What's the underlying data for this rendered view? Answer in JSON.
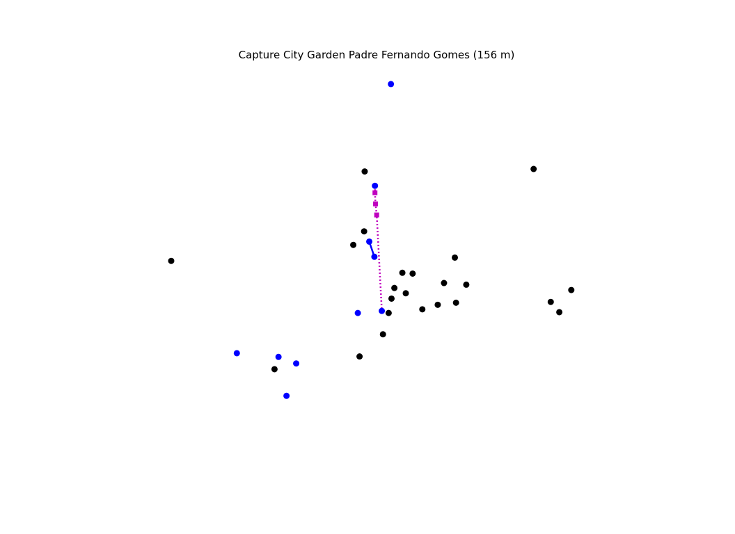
{
  "chart_data": {
    "type": "scatter",
    "title": "Capture City Garden Padre Fernando Gomes (156 m)",
    "xlabel": "",
    "ylabel": "",
    "axes_visible": false,
    "grid": false,
    "xlim": [
      0,
      100
    ],
    "ylim": [
      0,
      100
    ],
    "colors": {
      "black_points": "#000000",
      "blue_points": "#0000ff",
      "route": "#0000ff",
      "dotted_path": "#bf00bf"
    },
    "series": [
      {
        "marker": "circle",
        "color": "#000000",
        "points": [
          {
            "x": 47.8,
            "y": 73.8
          },
          {
            "x": 77.4,
            "y": 74.4
          },
          {
            "x": 47.7,
            "y": 59.2
          },
          {
            "x": 45.8,
            "y": 55.9
          },
          {
            "x": 13.9,
            "y": 52.0
          },
          {
            "x": 63.6,
            "y": 52.8
          },
          {
            "x": 54.4,
            "y": 49.1
          },
          {
            "x": 56.2,
            "y": 48.9
          },
          {
            "x": 61.7,
            "y": 46.6
          },
          {
            "x": 65.6,
            "y": 46.2
          },
          {
            "x": 53.0,
            "y": 45.4
          },
          {
            "x": 55.0,
            "y": 44.1
          },
          {
            "x": 52.5,
            "y": 42.8
          },
          {
            "x": 84.0,
            "y": 44.9
          },
          {
            "x": 80.4,
            "y": 42.0
          },
          {
            "x": 60.6,
            "y": 41.3
          },
          {
            "x": 63.8,
            "y": 41.8
          },
          {
            "x": 57.9,
            "y": 40.2
          },
          {
            "x": 52.0,
            "y": 39.3
          },
          {
            "x": 81.9,
            "y": 39.5
          },
          {
            "x": 51.0,
            "y": 34.1
          },
          {
            "x": 46.9,
            "y": 28.7
          },
          {
            "x": 32.0,
            "y": 25.6
          }
        ]
      },
      {
        "marker": "circle",
        "color": "#0000ff",
        "points": [
          {
            "x": 52.4,
            "y": 95.1
          },
          {
            "x": 49.6,
            "y": 70.3
          },
          {
            "x": 48.6,
            "y": 56.7
          },
          {
            "x": 49.5,
            "y": 53.0
          },
          {
            "x": 46.6,
            "y": 39.3
          },
          {
            "x": 50.8,
            "y": 39.8
          },
          {
            "x": 25.4,
            "y": 29.5
          },
          {
            "x": 32.7,
            "y": 28.6
          },
          {
            "x": 35.8,
            "y": 27.0
          },
          {
            "x": 34.1,
            "y": 19.1
          }
        ]
      },
      {
        "marker": "line",
        "color": "#0000ff",
        "points": [
          {
            "x": 48.6,
            "y": 56.7
          },
          {
            "x": 49.5,
            "y": 53.0
          }
        ]
      },
      {
        "marker": "dotted-line-square",
        "color": "#bf00bf",
        "points": [
          {
            "x": 49.6,
            "y": 70.3
          },
          {
            "x": 49.6,
            "y": 68.6
          },
          {
            "x": 49.7,
            "y": 65.9
          },
          {
            "x": 49.9,
            "y": 63.2
          },
          {
            "x": 50.0,
            "y": 60.8
          },
          {
            "x": 50.8,
            "y": 39.8
          }
        ],
        "square_markers": [
          {
            "x": 49.6,
            "y": 68.6
          },
          {
            "x": 49.7,
            "y": 65.9
          },
          {
            "x": 49.9,
            "y": 63.2
          }
        ]
      }
    ]
  }
}
